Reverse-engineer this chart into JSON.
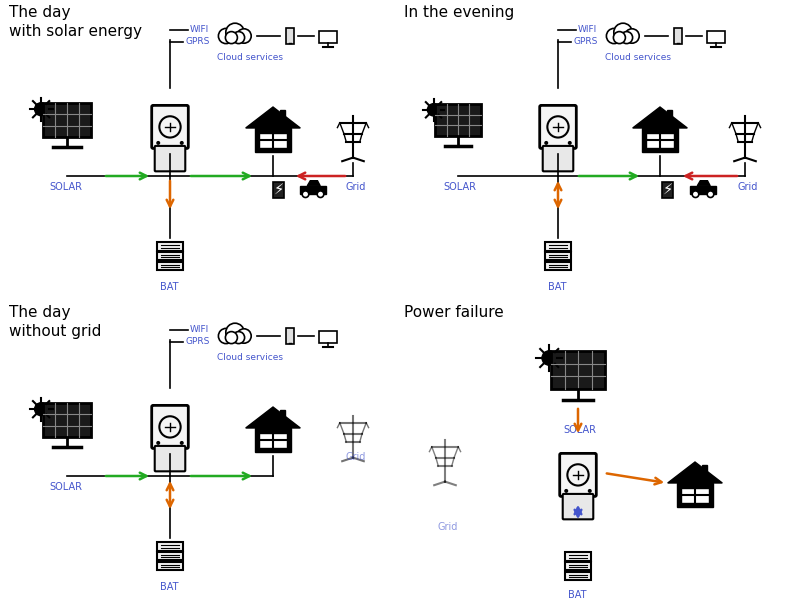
{
  "bg_color": "#ffffff",
  "black": "#000000",
  "blue": "#4455cc",
  "green": "#22aa22",
  "red": "#cc2222",
  "orange": "#dd6600",
  "panel_titles": [
    "The day\nwith solar energy",
    "In the evening",
    "The day\nwithout grid",
    "Power failure"
  ],
  "title_fs": 11,
  "label_fs": 7,
  "icon_fs_large": 28,
  "icon_fs_medium": 22,
  "icon_fs_small": 16
}
